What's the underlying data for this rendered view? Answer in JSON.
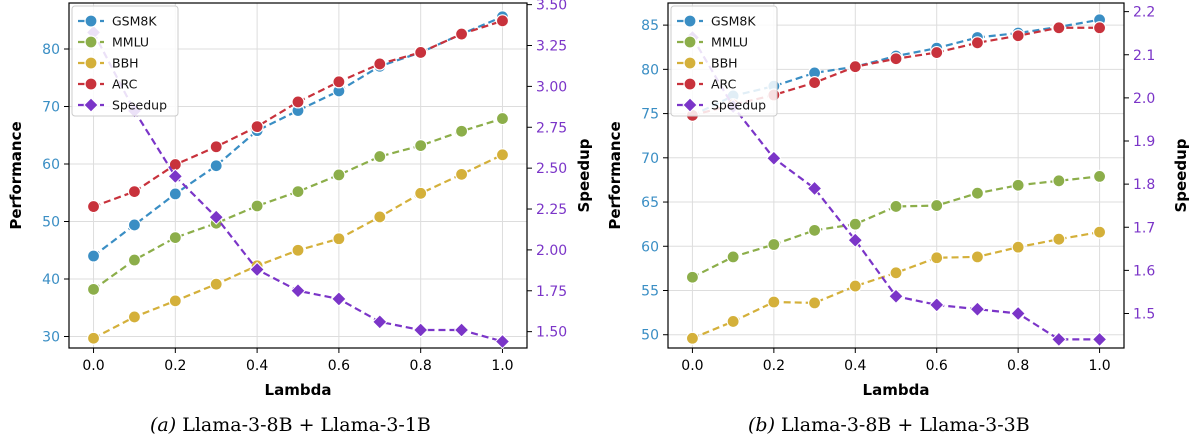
{
  "colors": {
    "GSM8K": "#3a8ec4",
    "MMLU": "#8cae4a",
    "BBH": "#d4b03a",
    "ARC": "#c8323c",
    "Speedup": "#7b35c8",
    "left_axis": "#3a8ec4",
    "right_axis": "#7b35c8"
  },
  "panels": [
    {
      "caption_prefix": "(a)",
      "caption_text": "Llama-3-8B + Llama-3-1B"
    },
    {
      "caption_prefix": "(b)",
      "caption_text": "Llama-3-8B + Llama-3-3B"
    }
  ],
  "chart_data": [
    {
      "type": "line",
      "xlabel": "Lambda",
      "ylabel": "Performance",
      "y2label": "Speedup",
      "x": [
        0.0,
        0.1,
        0.2,
        0.3,
        0.4,
        0.5,
        0.6,
        0.7,
        0.8,
        0.9,
        1.0
      ],
      "xticks": [
        "0.0",
        "0.2",
        "0.4",
        "0.6",
        "0.8",
        "1.0"
      ],
      "yticks": [
        30,
        40,
        50,
        60,
        70,
        80
      ],
      "y2ticks": [
        "1.50",
        "1.75",
        "2.00",
        "2.25",
        "2.50",
        "2.75",
        "3.00",
        "3.25",
        "3.50"
      ],
      "ylim": [
        28,
        88
      ],
      "y2lim": [
        1.4,
        3.51
      ],
      "xlim": [
        -0.06,
        1.06
      ],
      "legend": "top-left",
      "grid": true,
      "series": [
        {
          "name": "GSM8K",
          "axis": "left",
          "marker": "circle",
          "values": [
            44.0,
            49.4,
            54.8,
            59.7,
            65.8,
            69.3,
            72.7,
            77.0,
            79.4,
            82.6,
            85.6
          ]
        },
        {
          "name": "MMLU",
          "axis": "left",
          "marker": "circle",
          "values": [
            38.2,
            43.3,
            47.2,
            49.7,
            52.7,
            55.2,
            58.1,
            61.3,
            63.2,
            65.7,
            67.9
          ]
        },
        {
          "name": "BBH",
          "axis": "left",
          "marker": "circle",
          "values": [
            29.7,
            33.4,
            36.2,
            39.1,
            42.3,
            45.0,
            47.0,
            50.8,
            54.9,
            58.2,
            61.6
          ]
        },
        {
          "name": "ARC",
          "axis": "left",
          "marker": "circle",
          "values": [
            52.6,
            55.2,
            59.9,
            63.0,
            66.5,
            70.8,
            74.3,
            77.4,
            79.4,
            82.6,
            84.9
          ]
        },
        {
          "name": "Speedup",
          "axis": "right",
          "marker": "diamond",
          "values": [
            3.33,
            2.85,
            2.45,
            2.2,
            1.88,
            1.75,
            1.7,
            1.56,
            1.51,
            1.51,
            1.44
          ]
        }
      ]
    },
    {
      "type": "line",
      "xlabel": "Lambda",
      "ylabel": "Performance",
      "y2label": "Speedup",
      "x": [
        0.0,
        0.1,
        0.2,
        0.3,
        0.4,
        0.5,
        0.6,
        0.7,
        0.8,
        0.9,
        1.0
      ],
      "xticks": [
        "0.0",
        "0.2",
        "0.4",
        "0.6",
        "0.8",
        "1.0"
      ],
      "yticks": [
        50,
        55,
        60,
        65,
        70,
        75,
        80,
        85
      ],
      "y2ticks": [
        "1.5",
        "1.6",
        "1.7",
        "1.8",
        "1.9",
        "2.0",
        "2.1",
        "2.2"
      ],
      "ylim": [
        48.5,
        87.5
      ],
      "y2lim": [
        1.42,
        2.22
      ],
      "xlim": [
        -0.06,
        1.06
      ],
      "legend": "top-left",
      "grid": true,
      "series": [
        {
          "name": "GSM8K",
          "axis": "left",
          "marker": "circle",
          "values": [
            74.8,
            77.0,
            78.1,
            79.6,
            80.3,
            81.5,
            82.4,
            83.6,
            84.1,
            84.8,
            85.6
          ]
        },
        {
          "name": "MMLU",
          "axis": "left",
          "marker": "circle",
          "values": [
            56.5,
            58.8,
            60.2,
            61.8,
            62.5,
            64.5,
            64.6,
            66.0,
            66.9,
            67.4,
            67.9
          ]
        },
        {
          "name": "BBH",
          "axis": "left",
          "marker": "circle",
          "values": [
            49.6,
            51.5,
            53.7,
            53.6,
            55.5,
            57.0,
            58.7,
            58.8,
            59.9,
            60.8,
            61.6
          ]
        },
        {
          "name": "ARC",
          "axis": "left",
          "marker": "circle",
          "values": [
            74.8,
            76.0,
            77.1,
            78.5,
            80.3,
            81.2,
            81.9,
            83.0,
            83.8,
            84.7,
            84.7
          ]
        },
        {
          "name": "Speedup",
          "axis": "right",
          "marker": "diamond",
          "values": [
            2.14,
            1.98,
            1.86,
            1.79,
            1.67,
            1.54,
            1.52,
            1.51,
            1.5,
            1.44,
            1.44
          ]
        }
      ]
    }
  ]
}
